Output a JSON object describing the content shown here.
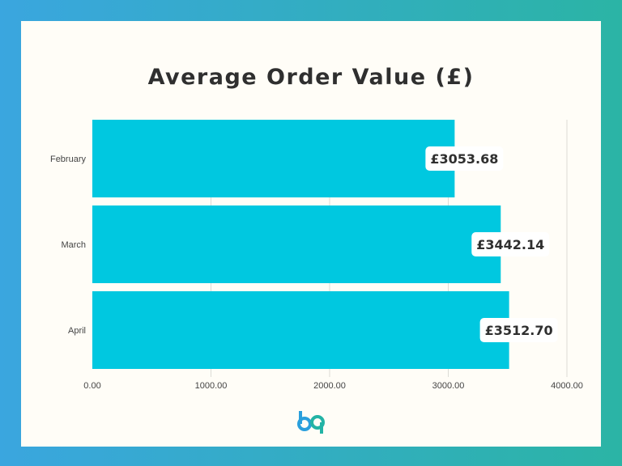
{
  "title": "Average Order Value (£)",
  "chart_data": {
    "type": "bar",
    "orientation": "horizontal",
    "title": "Average Order Value (£)",
    "xlabel": "",
    "ylabel": "",
    "categories": [
      "February",
      "March",
      "April"
    ],
    "values": [
      3053.68,
      3442.14,
      3512.7
    ],
    "data_labels": [
      "£3053.68",
      "£3442.14",
      "£3512.70"
    ],
    "x_ticks": [
      "0.00",
      "1000.00",
      "2000.00",
      "3000.00",
      "4000.00"
    ],
    "xlim": [
      0,
      4000
    ],
    "grid": "vertical",
    "bar_color": "#00c8e0"
  },
  "colors": {
    "background_left": "#3aa6df",
    "background_right": "#2bb4a5",
    "card": "#fffdf7",
    "bar": "#00c8e0",
    "text": "#2f2f2f"
  },
  "logo": {
    "icon": "bp-logo-icon",
    "text": "bp"
  }
}
